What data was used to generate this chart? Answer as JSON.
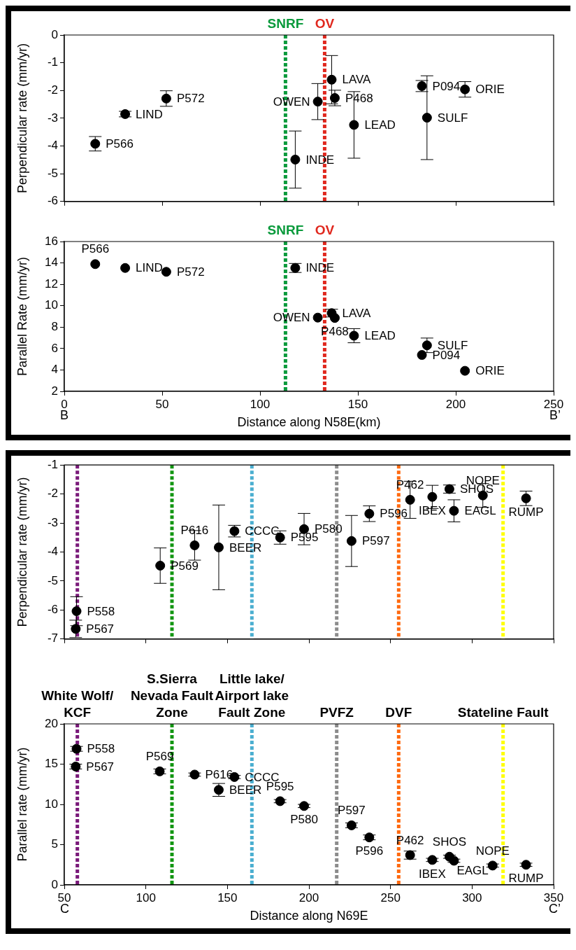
{
  "chart_data": [
    {
      "type": "scatter",
      "ylabel": "Perpendicular rate (mm/yr)",
      "xlim": [
        0,
        250
      ],
      "xticks": [
        0,
        50,
        100,
        150,
        200,
        250
      ],
      "ylim": [
        -6,
        0
      ],
      "yticks": [
        -6,
        -5,
        -4,
        -3,
        -2,
        -1,
        0
      ],
      "tick_labels": "y",
      "grid": false,
      "marker": "circle",
      "series": [
        {
          "color": "#000000",
          "x": [
            15.8,
            31.1,
            52.1,
            118,
            129.5,
            136.6,
            138.2,
            148,
            182.7,
            185.3,
            204.7
          ],
          "values": [
            -3.92,
            -2.85,
            -2.29,
            -4.49,
            -2.4,
            -1.61,
            -2.27,
            -3.24,
            -1.84,
            -2.98,
            -1.96
          ],
          "errors": [
            0.26,
            0.1,
            0.28,
            1.03,
            0.65,
            0.87,
            0.28,
            1.2,
            0.2,
            1.51,
            0.28
          ],
          "value_labels": [
            "P566",
            "LIND",
            "P572",
            "INDE",
            "OWEN",
            "LAVA",
            "P468",
            "LEAD",
            "P094",
            "SULF",
            "ORIE"
          ]
        }
      ],
      "ref_lines": [
        {
          "axis": "x",
          "value": 113,
          "label": "SNRF",
          "color": "#0a9a3c",
          "line_style": "dashed"
        },
        {
          "axis": "x",
          "value": 133,
          "label": "OV",
          "color": "#e0281e",
          "line_style": "dashed"
        }
      ]
    },
    {
      "type": "scatter",
      "ylabel": "Parallel Rate (mm/yr)",
      "xlabel": "Distance along N58E(km)",
      "xlim": [
        0,
        250
      ],
      "xticks": [
        0,
        50,
        100,
        150,
        200,
        250
      ],
      "ylim": [
        2,
        16
      ],
      "yticks": [
        2,
        4,
        6,
        8,
        10,
        12,
        14,
        16
      ],
      "grid": false,
      "marker": "circle",
      "annotations": [
        "B",
        "B’"
      ],
      "series": [
        {
          "color": "#000000",
          "x": [
            15.8,
            31.1,
            52.1,
            118,
            129.5,
            136.6,
            138.2,
            148,
            182.7,
            185.3,
            204.7
          ],
          "values": [
            13.89,
            13.53,
            13.17,
            13.53,
            8.89,
            9.31,
            8.86,
            7.2,
            5.4,
            6.3,
            3.92
          ],
          "errors": [
            null,
            null,
            null,
            0.42,
            null,
            0.36,
            null,
            0.66,
            null,
            0.68,
            null
          ],
          "value_labels": [
            "P566",
            "LIND",
            "P572",
            "INDE",
            "OWEN",
            "LAVA",
            "P468",
            "LEAD",
            "P094",
            "SULF",
            "ORIE"
          ]
        }
      ],
      "ref_lines": [
        {
          "axis": "x",
          "value": 113,
          "label": "SNRF",
          "color": "#0a9a3c",
          "line_style": "dashed"
        },
        {
          "axis": "x",
          "value": 133,
          "label": "OV",
          "color": "#e0281e",
          "line_style": "dashed"
        }
      ]
    },
    {
      "type": "scatter",
      "ylabel": "Perpendicular rate (mm/yr)",
      "xlim": [
        50,
        350
      ],
      "xticks": [
        50,
        100,
        150,
        200,
        250,
        300,
        350
      ],
      "ylim": [
        -7,
        -1
      ],
      "yticks": [
        -7,
        -6,
        -5,
        -4,
        -3,
        -2,
        -1
      ],
      "tick_labels": "y",
      "grid": false,
      "marker": "circle",
      "series": [
        {
          "color": "#000000",
          "x": [
            57.5,
            57,
            108.8,
            129.9,
            144.7,
            154.3,
            182.3,
            197,
            226.1,
            237,
            262,
            275.6,
            286.1,
            288.9,
            306.6,
            333.1
          ],
          "values": [
            -6.04,
            -6.65,
            -4.47,
            -3.77,
            -3.84,
            -3.28,
            -3.5,
            -3.21,
            -3.62,
            -2.68,
            -2.2,
            -2.1,
            -1.83,
            -2.58,
            -2.05,
            -2.15
          ],
          "errors": [
            0.5,
            0.3,
            0.61,
            0.51,
            1.46,
            0.2,
            0.23,
            0.54,
            0.88,
            0.27,
            0.64,
            0.4,
            0.14,
            0.38,
            0.41,
            0.25
          ],
          "value_labels": [
            "P558",
            "P567",
            "P569",
            "P616",
            "BEER",
            "CCCC",
            "P595",
            "P580",
            "P597",
            "P596",
            "P462",
            "IBEX",
            "SHOS",
            "EAGL",
            "NOPE",
            "RUMP"
          ]
        }
      ],
      "ref_lines": [
        {
          "axis": "x",
          "value": 58,
          "color": "#7a1a7a",
          "line_style": "dashed"
        },
        {
          "axis": "x",
          "value": 116,
          "color": "#129612",
          "line_style": "dashed"
        },
        {
          "axis": "x",
          "value": 165,
          "color": "#4aaed0",
          "line_style": "dashed"
        },
        {
          "axis": "x",
          "value": 217,
          "color": "#8c8c8c",
          "line_style": "dashed"
        },
        {
          "axis": "x",
          "value": 255,
          "color": "#ff6a10",
          "line_style": "dashed"
        },
        {
          "axis": "x",
          "value": 319,
          "color": "#ffff00",
          "line_style": "dashed"
        }
      ]
    },
    {
      "type": "scatter",
      "ylabel": "Parallel rate (mm/yr)",
      "xlabel": "Distance along N69E",
      "xlim": [
        50,
        350
      ],
      "xticks": [
        50,
        100,
        150,
        200,
        250,
        300,
        350
      ],
      "ylim": [
        0,
        20
      ],
      "yticks": [
        0,
        5,
        10,
        15,
        20
      ],
      "grid": false,
      "marker": "circle",
      "annotations": [
        "C",
        "C’"
      ],
      "series": [
        {
          "color": "#000000",
          "x": [
            57.5,
            57,
            108.5,
            129.9,
            144.7,
            154.3,
            182.3,
            197,
            226.1,
            237,
            262,
            275.6,
            286.1,
            288.9,
            312.6,
            333.1
          ],
          "values": [
            16.9,
            14.7,
            14.1,
            13.7,
            11.8,
            13.4,
            10.4,
            9.8,
            7.4,
            5.9,
            3.7,
            3.1,
            3.5,
            3.0,
            2.4,
            2.5
          ],
          "errors": [
            0.3,
            0.3,
            0.3,
            0.2,
            0.8,
            0.2,
            0.2,
            0.2,
            0.3,
            0.3,
            0.5,
            0.2,
            0.2,
            0.2,
            0.2,
            0.2
          ],
          "value_labels": [
            "P558",
            "P567",
            "P569",
            "P616",
            "BEER",
            "CCCC",
            "P595",
            "P580",
            "P597",
            "P596",
            "P462",
            "IBEX",
            "SHOS",
            "EAGL",
            "NOPE",
            "RUMP"
          ]
        }
      ],
      "ref_lines": [
        {
          "axis": "x",
          "value": 58,
          "label": "White Wolf/ KCF",
          "color": "#7a1a7a",
          "line_style": "dashed"
        },
        {
          "axis": "x",
          "value": 116,
          "label": "S.Sierra Nevada Fault Zone",
          "color": "#129612",
          "line_style": "dashed"
        },
        {
          "axis": "x",
          "value": 165,
          "label": "Little lake/ Airport lake Fault Zone",
          "color": "#4aaed0",
          "line_style": "dashed"
        },
        {
          "axis": "x",
          "value": 217,
          "label": "PVFZ",
          "color": "#8c8c8c",
          "line_style": "dashed"
        },
        {
          "axis": "x",
          "value": 255,
          "label": "DVF",
          "color": "#ff6a10",
          "line_style": "dashed"
        },
        {
          "axis": "x",
          "value": 319,
          "label": "Stateline Fault",
          "color": "#ffff00",
          "line_style": "dashed"
        }
      ]
    }
  ]
}
